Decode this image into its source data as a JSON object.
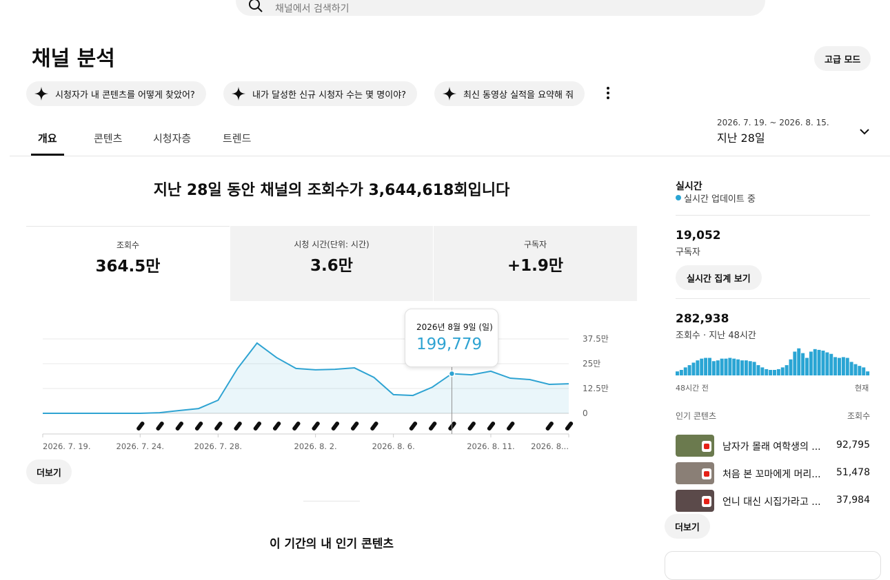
{
  "search": {
    "placeholder": "채널에서 검색하기"
  },
  "header": {
    "title": "채널 분석",
    "advanced_button": "고급 모드"
  },
  "suggestions": [
    "시청자가 내 콘텐츠를 어떻게 찾았어?",
    "내가 달성한 신규 시청자 수는 몇 명이야?",
    "최신 동영상 실적을 요약해 줘"
  ],
  "tabs": [
    "개요",
    "콘텐츠",
    "시청자층",
    "트렌드"
  ],
  "date_range": {
    "range": "2026. 7. 19. ~ 2026. 8. 15.",
    "label": "지난 28일"
  },
  "headline": "지난 28일 동안 채널의 조회수가 3,644,618회입니다",
  "metrics": [
    {
      "label": "조회수",
      "value": "364.5만"
    },
    {
      "label": "시청 시간(단위: 시간)",
      "value": "3.6만"
    },
    {
      "label": "구독자",
      "value": "+1.9만"
    }
  ],
  "chart_data": {
    "type": "line",
    "color": "#2ea3d2",
    "categories": [
      "2026. 7. 19.",
      null,
      null,
      null,
      null,
      "2026. 7. 24.",
      null,
      null,
      null,
      "2026. 7. 28.",
      null,
      null,
      null,
      null,
      "2026. 8. 2.",
      null,
      null,
      null,
      "2026. 8. 6.",
      null,
      null,
      null,
      null,
      "2026. 8. 11.",
      null,
      null,
      null,
      "2026. 8..."
    ],
    "values": [
      0,
      0,
      0,
      0,
      0,
      0,
      3000,
      14000,
      24000,
      66000,
      226000,
      354000,
      281000,
      226000,
      219000,
      222000,
      229000,
      181000,
      94000,
      90000,
      132000,
      199779,
      194000,
      212000,
      177000,
      170000,
      146000,
      149000
    ],
    "ylim": [
      0,
      375000
    ],
    "yticks": [
      0,
      {
        "value": 125000,
        "label": "12.5만"
      },
      {
        "value": 250000,
        "label": "25만"
      },
      {
        "value": 375000,
        "label": "37.5만"
      }
    ],
    "grid": true,
    "tooltip": {
      "date": "2026년 8월 9일 (일)",
      "value": "199,779"
    }
  },
  "more_button": "더보기",
  "bottom_title": "이 기간의 내 인기 콘텐츠",
  "realtime": {
    "title": "실시간",
    "status": "실시간 업데이트 중",
    "subscribers": {
      "value": "19,052",
      "label": "구독자"
    },
    "button": "실시간 집계 보기",
    "views": {
      "value": "282,938",
      "label": "조회수 · 지난 48시간"
    },
    "chart": {
      "type": "bar",
      "color": "#2aa5d4",
      "ylim": [
        0,
        11000
      ],
      "values": [
        1600,
        2200,
        3200,
        4100,
        5100,
        6000,
        6700,
        7000,
        7000,
        5700,
        6000,
        6700,
        6700,
        7000,
        6700,
        6400,
        6000,
        6000,
        5700,
        5400,
        4100,
        3200,
        2500,
        2200,
        2200,
        2500,
        3200,
        4100,
        6400,
        9500,
        10800,
        8900,
        7000,
        9500,
        10500,
        10200,
        9900,
        9200,
        8600,
        7300,
        7000,
        7300,
        7000,
        5400,
        4500,
        3800,
        3200,
        1600
      ],
      "start_label": "48시간 전",
      "end_label": "현재"
    },
    "top_content": {
      "title": "인기 콘텐츠",
      "column": "조회수",
      "items": [
        {
          "title": "남자가 몰래 여학생의 ...",
          "views": "92,795"
        },
        {
          "title": "처음 본 꼬마에게 머리...",
          "views": "51,478"
        },
        {
          "title": "언니 대신 시집가라고 ...",
          "views": "37,984"
        }
      ]
    },
    "more_button": "더보기"
  }
}
